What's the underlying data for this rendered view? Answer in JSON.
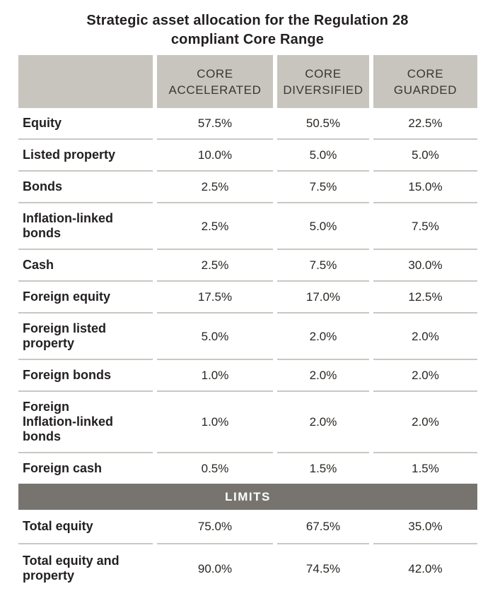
{
  "title": "Strategic asset allocation for the Regulation 28\ncompliant Core Range",
  "table": {
    "columns": [
      "CORE\nACCELERATED",
      "CORE\nDIVERSIFIED",
      "CORE\nGUARDED"
    ],
    "rows": [
      {
        "label": "Equity",
        "values": [
          "57.5%",
          "50.5%",
          "22.5%"
        ]
      },
      {
        "label": "Listed property",
        "values": [
          "10.0%",
          "5.0%",
          "5.0%"
        ]
      },
      {
        "label": "Bonds",
        "values": [
          "2.5%",
          "7.5%",
          "15.0%"
        ]
      },
      {
        "label": "Inflation-linked\nbonds",
        "values": [
          "2.5%",
          "5.0%",
          "7.5%"
        ]
      },
      {
        "label": "Cash",
        "values": [
          "2.5%",
          "7.5%",
          "30.0%"
        ]
      },
      {
        "label": "Foreign equity",
        "values": [
          "17.5%",
          "17.0%",
          "12.5%"
        ]
      },
      {
        "label": "Foreign listed\nproperty",
        "values": [
          "5.0%",
          "2.0%",
          "2.0%"
        ]
      },
      {
        "label": "Foreign bonds",
        "values": [
          "1.0%",
          "2.0%",
          "2.0%"
        ]
      },
      {
        "label": "Foreign\nInflation-linked\nbonds",
        "values": [
          "1.0%",
          "2.0%",
          "2.0%"
        ]
      },
      {
        "label": "Foreign cash",
        "values": [
          "0.5%",
          "1.5%",
          "1.5%"
        ]
      }
    ],
    "limits_label": "LIMITS",
    "limits_rows": [
      {
        "label": "Total equity",
        "values": [
          "75.0%",
          "67.5%",
          "35.0%"
        ]
      },
      {
        "label": "Total equity and\nproperty",
        "values": [
          "90.0%",
          "74.5%",
          "42.0%"
        ]
      }
    ]
  },
  "colors": {
    "header_bg": "#c8c4be",
    "limits_bg": "#777470",
    "separator": "#cbc7c1",
    "text": "#231f20"
  }
}
